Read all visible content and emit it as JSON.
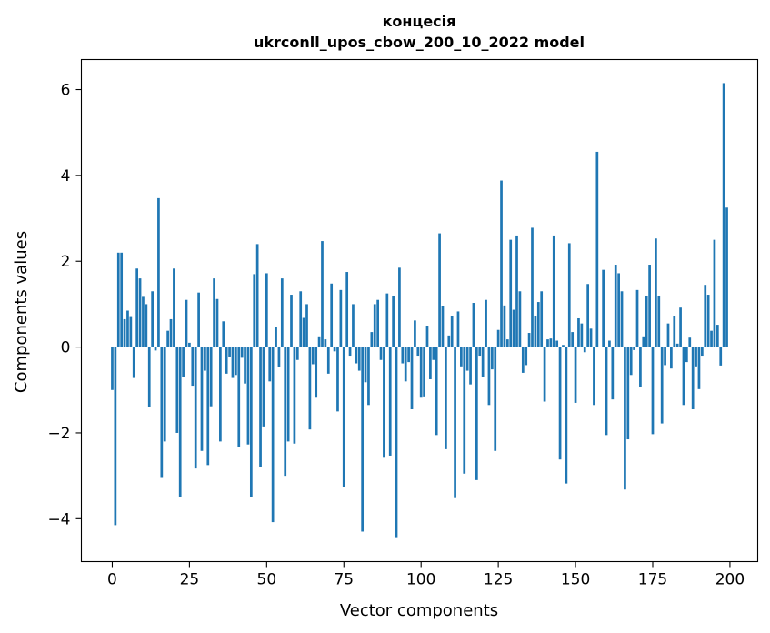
{
  "chart_data": {
    "type": "bar",
    "title_line1": "концесія",
    "title_line2": "ukrconll_upos_cbow_200_10_2022 model",
    "xlabel": "Vector components",
    "ylabel": "Components values",
    "xlim": [
      -10,
      209
    ],
    "ylim": [
      -5.0,
      6.7
    ],
    "x_ticks": [
      0,
      25,
      50,
      75,
      100,
      125,
      150,
      175,
      200
    ],
    "y_ticks": [
      -4,
      -2,
      0,
      2,
      4,
      6
    ],
    "x_tick_labels": [
      "0",
      "25",
      "50",
      "75",
      "100",
      "125",
      "150",
      "175",
      "200"
    ],
    "y_tick_labels": [
      "−4",
      "−2",
      "0",
      "2",
      "4",
      "6"
    ],
    "grid": false,
    "bar_color": "#1f77b4",
    "x": [
      0,
      1,
      2,
      3,
      4,
      5,
      6,
      7,
      8,
      9,
      10,
      11,
      12,
      13,
      14,
      15,
      16,
      17,
      18,
      19,
      20,
      21,
      22,
      23,
      24,
      25,
      26,
      27,
      28,
      29,
      30,
      31,
      32,
      33,
      34,
      35,
      36,
      37,
      38,
      39,
      40,
      41,
      42,
      43,
      44,
      45,
      46,
      47,
      48,
      49,
      50,
      51,
      52,
      53,
      54,
      55,
      56,
      57,
      58,
      59,
      60,
      61,
      62,
      63,
      64,
      65,
      66,
      67,
      68,
      69,
      70,
      71,
      72,
      73,
      74,
      75,
      76,
      77,
      78,
      79,
      80,
      81,
      82,
      83,
      84,
      85,
      86,
      87,
      88,
      89,
      90,
      91,
      92,
      93,
      94,
      95,
      96,
      97,
      98,
      99,
      100,
      101,
      102,
      103,
      104,
      105,
      106,
      107,
      108,
      109,
      110,
      111,
      112,
      113,
      114,
      115,
      116,
      117,
      118,
      119,
      120,
      121,
      122,
      123,
      124,
      125,
      126,
      127,
      128,
      129,
      130,
      131,
      132,
      133,
      134,
      135,
      136,
      137,
      138,
      139,
      140,
      141,
      142,
      143,
      144,
      145,
      146,
      147,
      148,
      149,
      150,
      151,
      152,
      153,
      154,
      155,
      156,
      157,
      158,
      159,
      160,
      161,
      162,
      163,
      164,
      165,
      166,
      167,
      168,
      169,
      170,
      171,
      172,
      173,
      174,
      175,
      176,
      177,
      178,
      179,
      180,
      181,
      182,
      183,
      184,
      185,
      186,
      187,
      188,
      189,
      190,
      191,
      192,
      193,
      194,
      195,
      196,
      197,
      198,
      199
    ],
    "values": [
      -1.0,
      -4.15,
      2.2,
      2.2,
      0.65,
      0.85,
      0.7,
      -0.72,
      1.83,
      1.6,
      1.17,
      1.0,
      -1.4,
      1.3,
      -0.08,
      3.47,
      -3.05,
      -2.2,
      0.38,
      0.65,
      1.83,
      -2.0,
      -3.5,
      -0.7,
      1.1,
      0.1,
      -0.9,
      -2.83,
      1.27,
      -2.42,
      -0.55,
      -2.75,
      -1.38,
      1.6,
      1.12,
      -2.2,
      0.6,
      -0.62,
      -0.22,
      -0.72,
      -0.65,
      -2.32,
      -0.25,
      -0.85,
      -2.27,
      -3.5,
      1.7,
      2.4,
      -2.8,
      -1.85,
      1.72,
      -0.8,
      -4.08,
      0.47,
      -0.47,
      1.6,
      -3.0,
      -2.2,
      1.22,
      -2.25,
      -0.3,
      1.3,
      0.68,
      1.0,
      -1.92,
      -0.4,
      -1.18,
      0.25,
      2.47,
      0.18,
      -0.62,
      1.48,
      -0.1,
      -1.5,
      1.33,
      -3.27,
      1.75,
      -0.2,
      1.0,
      -0.38,
      -0.55,
      -4.3,
      -0.82,
      -1.35,
      0.35,
      1.0,
      1.1,
      -0.3,
      -2.58,
      1.25,
      -2.53,
      1.2,
      -4.43,
      1.85,
      -0.38,
      -0.8,
      -0.35,
      -1.45,
      0.62,
      -0.2,
      -1.18,
      -1.15,
      0.5,
      -0.75,
      -0.3,
      -2.05,
      2.65,
      0.95,
      -2.38,
      0.27,
      0.72,
      -3.52,
      0.83,
      -0.45,
      -2.95,
      -0.55,
      -0.87,
      1.03,
      -3.1,
      -0.2,
      -0.7,
      1.1,
      -1.35,
      -0.52,
      -2.42,
      0.4,
      3.88,
      0.97,
      0.18,
      2.5,
      0.87,
      2.6,
      1.3,
      -0.6,
      -0.42,
      0.33,
      2.78,
      0.72,
      1.05,
      1.3,
      -1.27,
      0.18,
      0.2,
      2.6,
      0.15,
      -2.62,
      0.05,
      -3.18,
      2.42,
      0.35,
      -1.3,
      0.67,
      0.55,
      -0.12,
      1.47,
      0.43,
      -1.35,
      4.55,
      0.0,
      1.8,
      -2.05,
      0.15,
      -1.22,
      1.92,
      1.72,
      1.3,
      -3.32,
      -2.15,
      -0.65,
      -0.07,
      1.33,
      -0.93,
      0.25,
      1.2,
      1.92,
      -2.03,
      2.53,
      1.2,
      -1.78,
      -0.42,
      0.55,
      -0.5,
      0.72,
      0.08,
      0.92,
      -1.35,
      -0.35,
      0.22,
      -1.45,
      -0.45,
      -0.98,
      -0.2,
      1.45,
      1.22,
      0.38,
      2.5,
      0.52,
      -0.43,
      6.15,
      3.25
    ]
  }
}
